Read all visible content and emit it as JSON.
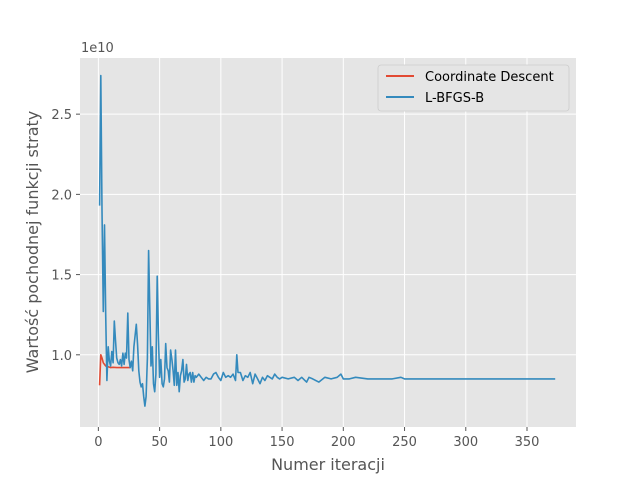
{
  "chart_data": {
    "type": "line",
    "xlabel": "Numer iteracji",
    "ylabel": "Wartość pochodnej funkcji straty",
    "y_offset_label": "1e10",
    "xlim": [
      -15,
      390
    ],
    "ylim": [
      5500000000,
      28500000000
    ],
    "x_ticks": [
      0,
      50,
      100,
      150,
      200,
      250,
      300,
      350
    ],
    "x_tick_labels": [
      "0",
      "50",
      "100",
      "150",
      "200",
      "250",
      "300",
      "350"
    ],
    "y_ticks": [
      10000000000,
      15000000000,
      20000000000,
      25000000000
    ],
    "y_tick_labels": [
      "1.0",
      "1.5",
      "2.0",
      "2.5"
    ],
    "grid": true,
    "legend_position": "top-right",
    "colors": {
      "background": "#e5e5e5",
      "grid": "#ffffff"
    },
    "series": [
      {
        "name": "Coordinate Descent",
        "color": "#e24a33",
        "points": [
          [
            1,
            8100000000
          ],
          [
            2,
            10000000000
          ],
          [
            3,
            9800000000
          ],
          [
            4,
            9500000000
          ],
          [
            5,
            9400000000
          ],
          [
            6,
            9300000000
          ],
          [
            8,
            9250000000
          ],
          [
            10,
            9200000000
          ],
          [
            12,
            9220000000
          ],
          [
            15,
            9200000000
          ],
          [
            18,
            9200000000
          ],
          [
            21,
            9200000000
          ],
          [
            24,
            9200000000
          ],
          [
            26,
            9200000000
          ]
        ]
      },
      {
        "name": "L-BFGS-B",
        "color": "#348abd",
        "points": [
          [
            1,
            19300000000
          ],
          [
            2,
            27400000000
          ],
          [
            3,
            19000000000
          ],
          [
            4,
            12700000000
          ],
          [
            5,
            18100000000
          ],
          [
            6,
            12500000000
          ],
          [
            7,
            8400000000
          ],
          [
            8,
            10500000000
          ],
          [
            9,
            9600000000
          ],
          [
            10,
            9300000000
          ],
          [
            11,
            10200000000
          ],
          [
            12,
            9500000000
          ],
          [
            13,
            12100000000
          ],
          [
            14,
            10900000000
          ],
          [
            15,
            9800000000
          ],
          [
            16,
            9500000000
          ],
          [
            17,
            9400000000
          ],
          [
            18,
            9700000000
          ],
          [
            19,
            9300000000
          ],
          [
            20,
            10100000000
          ],
          [
            21,
            9400000000
          ],
          [
            22,
            10100000000
          ],
          [
            23,
            9800000000
          ],
          [
            24,
            12600000000
          ],
          [
            25,
            9700000000
          ],
          [
            26,
            9200000000
          ],
          [
            27,
            9600000000
          ],
          [
            28,
            9000000000
          ],
          [
            29,
            10500000000
          ],
          [
            30,
            11200000000
          ],
          [
            31,
            11900000000
          ],
          [
            32,
            10600000000
          ],
          [
            33,
            9000000000
          ],
          [
            34,
            8300000000
          ],
          [
            35,
            8000000000
          ],
          [
            36,
            8200000000
          ],
          [
            37,
            7400000000
          ],
          [
            38,
            6800000000
          ],
          [
            39,
            7400000000
          ],
          [
            40,
            9800000000
          ],
          [
            41,
            16500000000
          ],
          [
            42,
            12900000000
          ],
          [
            43,
            9300000000
          ],
          [
            44,
            10500000000
          ],
          [
            45,
            8200000000
          ],
          [
            46,
            7700000000
          ],
          [
            47,
            8800000000
          ],
          [
            48,
            14900000000
          ],
          [
            49,
            11300000000
          ],
          [
            50,
            8600000000
          ],
          [
            51,
            9700000000
          ],
          [
            52,
            8200000000
          ],
          [
            53,
            8000000000
          ],
          [
            54,
            8500000000
          ],
          [
            55,
            10700000000
          ],
          [
            56,
            9200000000
          ],
          [
            57,
            9000000000
          ],
          [
            58,
            8300000000
          ],
          [
            59,
            10300000000
          ],
          [
            60,
            9700000000
          ],
          [
            61,
            9000000000
          ],
          [
            62,
            8100000000
          ],
          [
            63,
            10300000000
          ],
          [
            64,
            8100000000
          ],
          [
            65,
            8900000000
          ],
          [
            66,
            7700000000
          ],
          [
            67,
            8700000000
          ],
          [
            68,
            9000000000
          ],
          [
            69,
            9700000000
          ],
          [
            70,
            8300000000
          ],
          [
            71,
            8500000000
          ],
          [
            72,
            9400000000
          ],
          [
            73,
            8400000000
          ],
          [
            74,
            8800000000
          ],
          [
            75,
            8900000000
          ],
          [
            76,
            8300000000
          ],
          [
            77,
            8900000000
          ],
          [
            78,
            8300000000
          ],
          [
            79,
            8700000000
          ],
          [
            80,
            8600000000
          ],
          [
            82,
            8800000000
          ],
          [
            84,
            8600000000
          ],
          [
            86,
            8400000000
          ],
          [
            88,
            8600000000
          ],
          [
            90,
            8500000000
          ],
          [
            92,
            8500000000
          ],
          [
            94,
            8800000000
          ],
          [
            96,
            8900000000
          ],
          [
            98,
            8600000000
          ],
          [
            100,
            8400000000
          ],
          [
            102,
            8900000000
          ],
          [
            104,
            8600000000
          ],
          [
            106,
            8700000000
          ],
          [
            108,
            8600000000
          ],
          [
            110,
            8800000000
          ],
          [
            112,
            8400000000
          ],
          [
            113,
            10000000000
          ],
          [
            114,
            8900000000
          ],
          [
            116,
            8900000000
          ],
          [
            118,
            8400000000
          ],
          [
            120,
            8700000000
          ],
          [
            122,
            8600000000
          ],
          [
            124,
            8900000000
          ],
          [
            126,
            8200000000
          ],
          [
            128,
            8800000000
          ],
          [
            130,
            8500000000
          ],
          [
            132,
            8200000000
          ],
          [
            134,
            8600000000
          ],
          [
            136,
            8400000000
          ],
          [
            138,
            8700000000
          ],
          [
            140,
            8600000000
          ],
          [
            142,
            8500000000
          ],
          [
            144,
            8800000000
          ],
          [
            146,
            8600000000
          ],
          [
            148,
            8500000000
          ],
          [
            150,
            8600000000
          ],
          [
            155,
            8500000000
          ],
          [
            160,
            8600000000
          ],
          [
            163,
            8400000000
          ],
          [
            166,
            8600000000
          ],
          [
            170,
            8300000000
          ],
          [
            172,
            8600000000
          ],
          [
            175,
            8500000000
          ],
          [
            180,
            8300000000
          ],
          [
            185,
            8600000000
          ],
          [
            190,
            8500000000
          ],
          [
            195,
            8600000000
          ],
          [
            198,
            8800000000
          ],
          [
            200,
            8500000000
          ],
          [
            205,
            8500000000
          ],
          [
            210,
            8600000000
          ],
          [
            220,
            8500000000
          ],
          [
            230,
            8500000000
          ],
          [
            240,
            8500000000
          ],
          [
            247,
            8600000000
          ],
          [
            250,
            8500000000
          ],
          [
            260,
            8500000000
          ],
          [
            270,
            8500000000
          ],
          [
            280,
            8500000000
          ],
          [
            290,
            8500000000
          ],
          [
            300,
            8500000000
          ],
          [
            320,
            8500000000
          ],
          [
            340,
            8500000000
          ],
          [
            360,
            8500000000
          ],
          [
            373,
            8500000000
          ]
        ]
      }
    ]
  }
}
